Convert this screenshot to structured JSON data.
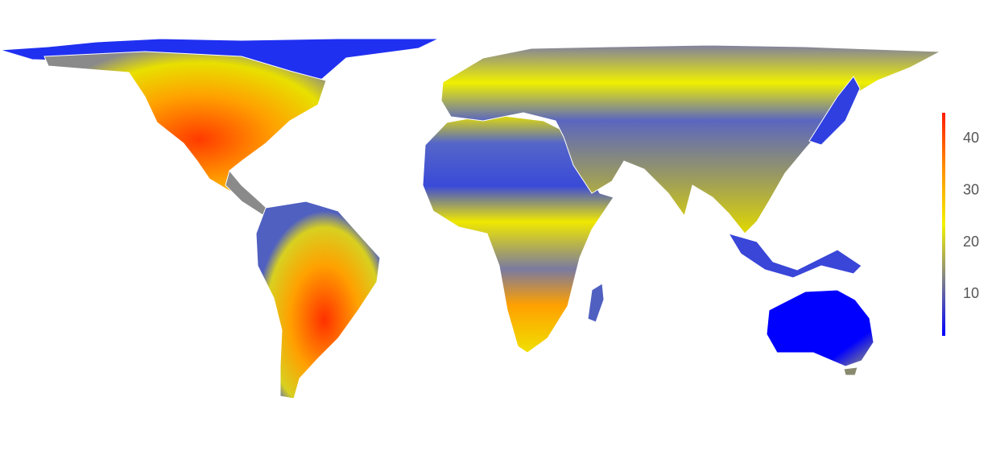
{
  "chart_data": {
    "type": "choropleth",
    "colorbar": {
      "lim": [
        2,
        45
      ],
      "ticks": [
        10,
        20,
        30,
        40
      ],
      "colors": [
        "#0000ff",
        "#7f7f8a",
        "#f2f200",
        "#ff9000",
        "#ff1a00"
      ]
    }
  }
}
